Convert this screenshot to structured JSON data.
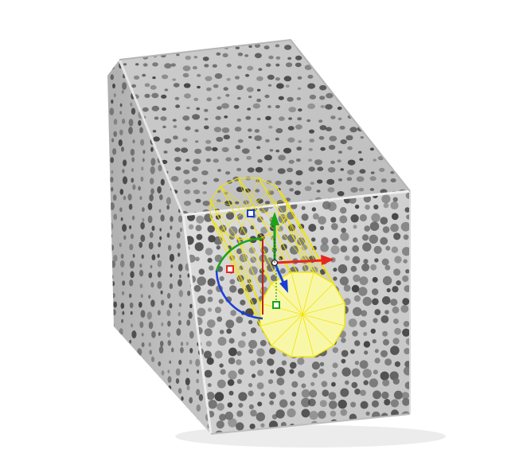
{
  "viewport": {
    "background": "#ffffff"
  },
  "model": {
    "kind": "porous-lattice-block",
    "face_colors": {
      "top": "#c9c9c9",
      "left": "#b7b7b7",
      "front": "#cfcfcf",
      "pore": "#6b6b6b",
      "pore_deep": "#3f3f3f",
      "edge_highlight": "#ededed",
      "shadow": "#d9d9d9"
    }
  },
  "selection": {
    "kind": "cylinder-wireframe",
    "wire_color": "#f2e400",
    "cap_fill": "#f8f7a8"
  },
  "gizmo": {
    "axes": [
      {
        "name": "x-axis",
        "color": "#e8261d"
      },
      {
        "name": "y-axis",
        "color": "#1aa31a"
      },
      {
        "name": "z-axis",
        "color": "#1b3fd6"
      }
    ],
    "handles": [
      "x-scale-handle",
      "y-scale-handle",
      "z-scale-handle"
    ],
    "rotation_arcs": [
      "red-rotation-arc",
      "green-rotation-arc",
      "blue-rotation-arc"
    ]
  }
}
